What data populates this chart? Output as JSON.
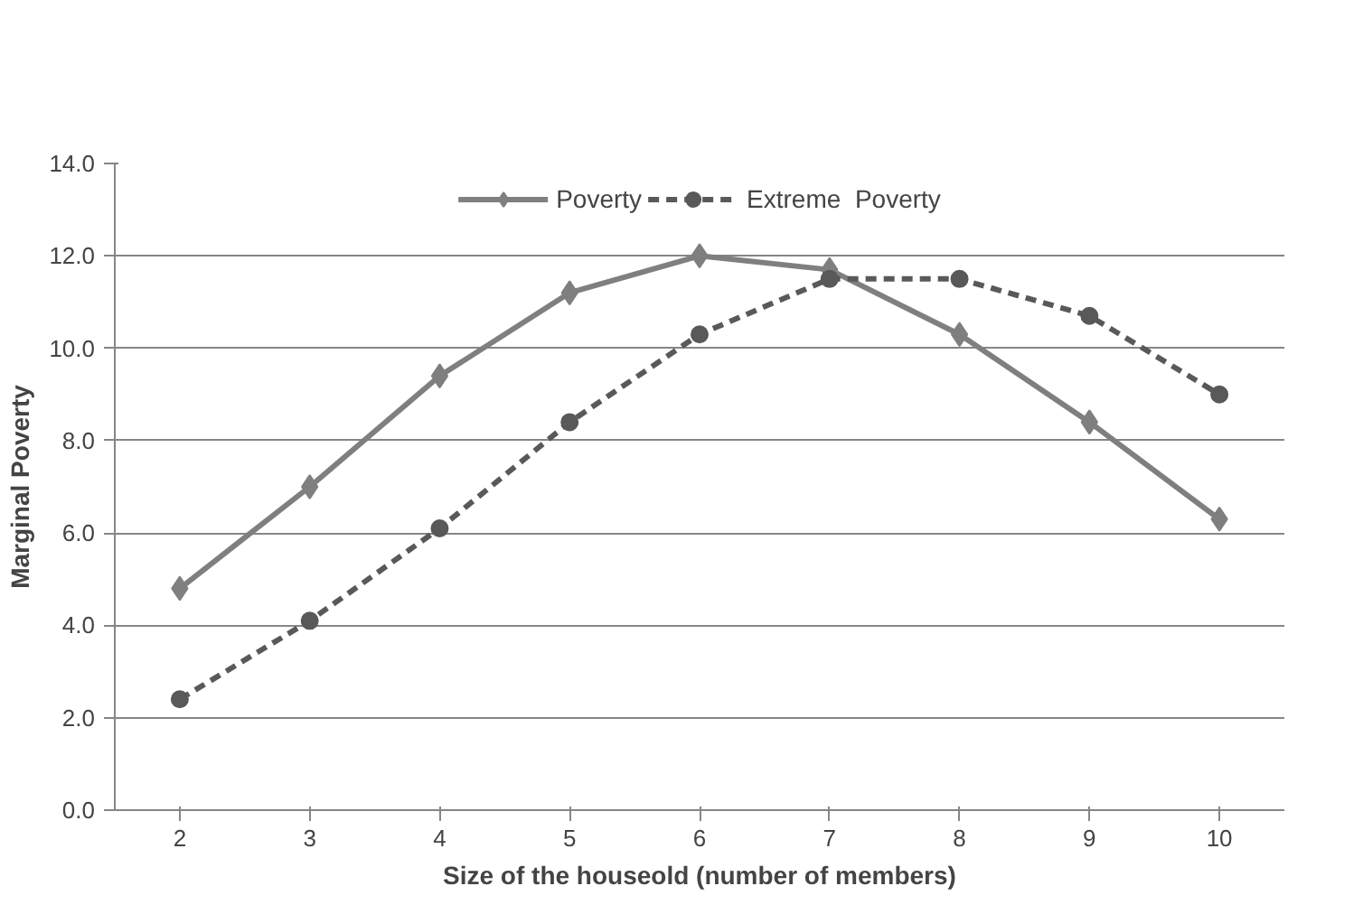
{
  "chart_data": {
    "type": "line",
    "xlabel": "Size of the houseold (number of members)",
    "ylabel": "Marginal Poverty",
    "categories": [
      "2",
      "3",
      "4",
      "5",
      "6",
      "7",
      "8",
      "9",
      "10"
    ],
    "series": [
      {
        "name": "Poverty",
        "color": "#7f7f7f",
        "marker": "diamond",
        "line_style": "solid",
        "values": [
          4.8,
          7.0,
          9.4,
          11.2,
          12.0,
          11.7,
          10.3,
          8.4,
          6.3
        ]
      },
      {
        "name": "Extreme  Poverty",
        "color": "#595959",
        "marker": "circle",
        "line_style": "dashed",
        "values": [
          2.4,
          4.1,
          6.1,
          8.4,
          10.3,
          11.5,
          11.5,
          10.7,
          9.0
        ]
      }
    ],
    "ylim": [
      0,
      14
    ],
    "yticks": [
      {
        "value": 0,
        "label": "0.0"
      },
      {
        "value": 2,
        "label": "2.0"
      },
      {
        "value": 4,
        "label": "4.0"
      },
      {
        "value": 6,
        "label": "6.0"
      },
      {
        "value": 8,
        "label": "8.0"
      },
      {
        "value": 10,
        "label": "10.0"
      },
      {
        "value": 12,
        "label": "12.0"
      },
      {
        "value": 14,
        "label": "14.0"
      }
    ],
    "grid": "y",
    "legend": "top"
  }
}
